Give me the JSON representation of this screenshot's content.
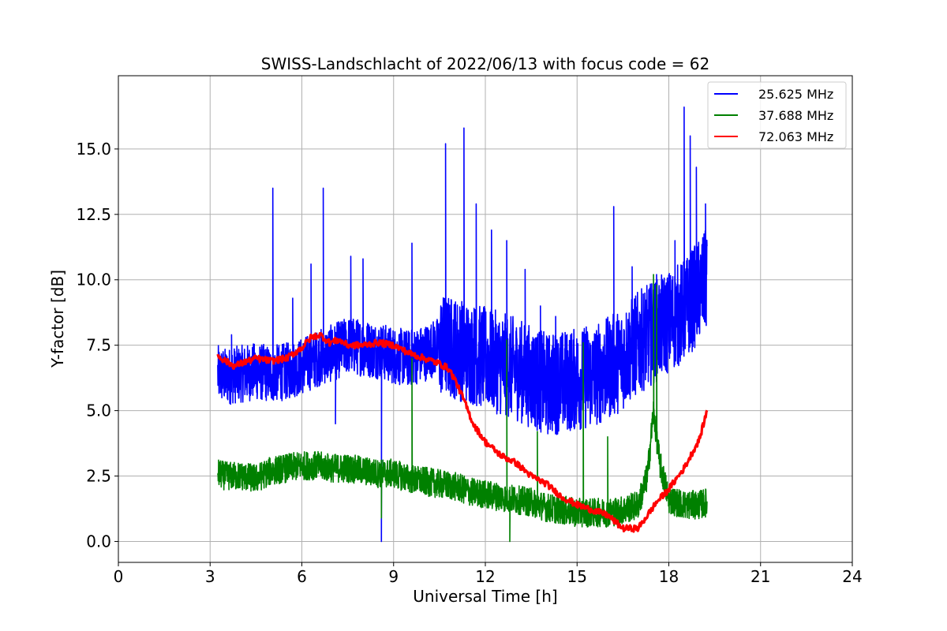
{
  "chart_data": {
    "type": "line",
    "title": "SWISS-Landschlacht of 2022/06/13 with focus code = 62",
    "xlabel": "Universal Time [h]",
    "ylabel": "Y-factor [dB]",
    "xlim": [
      0,
      24
    ],
    "ylim": [
      -0.8,
      17.8
    ],
    "xticks": [
      0,
      3,
      6,
      9,
      12,
      15,
      18,
      21,
      24
    ],
    "xtick_labels": [
      "0",
      "3",
      "6",
      "9",
      "12",
      "15",
      "18",
      "21",
      "24"
    ],
    "yticks": [
      0,
      2.5,
      5,
      7.5,
      10,
      12.5,
      15
    ],
    "ytick_labels": [
      "0.0",
      "2.5",
      "5.0",
      "7.5",
      "10.0",
      "12.5",
      "15.0"
    ],
    "grid": true,
    "legend_position": "top-right",
    "series": [
      {
        "name": "25.625 MHz",
        "color": "#0000ff",
        "x": [
          3.25,
          3.5,
          4.0,
          4.5,
          5.0,
          5.5,
          6.0,
          6.5,
          7.0,
          7.5,
          8.0,
          8.5,
          9.0,
          9.5,
          10.0,
          10.5,
          11.0,
          11.5,
          12.0,
          12.5,
          13.0,
          13.5,
          14.0,
          14.5,
          15.0,
          15.5,
          16.0,
          16.5,
          17.0,
          17.5,
          18.0,
          18.5,
          19.0,
          19.25
        ],
        "values": [
          6.4,
          6.3,
          6.4,
          6.5,
          6.4,
          6.5,
          6.7,
          7.0,
          7.2,
          7.5,
          7.4,
          7.3,
          7.1,
          7.0,
          7.2,
          7.5,
          7.4,
          7.2,
          7.0,
          6.8,
          6.6,
          6.3,
          6.0,
          6.1,
          6.2,
          6.3,
          6.6,
          7.0,
          7.6,
          8.0,
          8.4,
          8.8,
          9.6,
          10.0
        ],
        "spikes": [
          [
            3.7,
            7.9
          ],
          [
            5.05,
            13.5
          ],
          [
            5.7,
            9.3
          ],
          [
            6.3,
            10.6
          ],
          [
            6.7,
            13.5
          ],
          [
            7.1,
            4.5
          ],
          [
            7.6,
            10.9
          ],
          [
            8.0,
            10.8
          ],
          [
            8.6,
            0.0
          ],
          [
            9.6,
            11.4
          ],
          [
            10.7,
            15.2
          ],
          [
            11.3,
            15.8
          ],
          [
            11.7,
            12.9
          ],
          [
            12.2,
            11.9
          ],
          [
            12.7,
            11.5
          ],
          [
            13.3,
            10.4
          ],
          [
            13.8,
            9.0
          ],
          [
            14.3,
            8.6
          ],
          [
            15.3,
            8.2
          ],
          [
            16.2,
            12.8
          ],
          [
            16.8,
            10.5
          ],
          [
            17.6,
            10.2
          ],
          [
            18.2,
            11.5
          ],
          [
            18.5,
            16.6
          ],
          [
            18.7,
            15.5
          ],
          [
            18.9,
            14.3
          ],
          [
            19.2,
            12.9
          ]
        ]
      },
      {
        "name": "37.688 MHz",
        "color": "#008000",
        "x": [
          3.25,
          3.5,
          4.0,
          4.5,
          5.0,
          5.5,
          6.0,
          6.5,
          7.0,
          7.5,
          8.0,
          8.5,
          9.0,
          9.5,
          10.0,
          10.5,
          11.0,
          11.5,
          12.0,
          12.5,
          13.0,
          13.5,
          14.0,
          14.5,
          15.0,
          15.5,
          16.0,
          16.5,
          17.0,
          17.3,
          17.5,
          17.7,
          18.0,
          18.5,
          19.0,
          19.25
        ],
        "values": [
          2.6,
          2.5,
          2.5,
          2.4,
          2.7,
          2.8,
          2.9,
          2.9,
          2.8,
          2.8,
          2.7,
          2.6,
          2.6,
          2.4,
          2.3,
          2.2,
          2.1,
          1.9,
          1.8,
          1.7,
          1.6,
          1.5,
          1.3,
          1.2,
          1.1,
          1.1,
          1.1,
          1.2,
          1.4,
          2.5,
          5.0,
          3.0,
          1.6,
          1.4,
          1.4,
          1.5
        ],
        "spikes": [
          [
            8.6,
            0.9
          ],
          [
            9.6,
            7.0
          ],
          [
            12.7,
            7.7
          ],
          [
            12.8,
            0.0
          ],
          [
            13.7,
            4.2
          ],
          [
            15.2,
            7.6
          ],
          [
            16.0,
            4.0
          ],
          [
            17.5,
            10.2
          ],
          [
            17.6,
            9.8
          ]
        ]
      },
      {
        "name": "72.063 MHz",
        "color": "#ff0000",
        "x": [
          3.25,
          3.5,
          3.8,
          4.0,
          4.5,
          5.0,
          5.5,
          6.0,
          6.3,
          6.6,
          6.9,
          7.2,
          7.5,
          8.0,
          8.5,
          9.0,
          9.5,
          10.0,
          10.5,
          10.8,
          11.0,
          11.3,
          11.6,
          12.0,
          12.5,
          13.0,
          13.5,
          14.0,
          14.5,
          15.0,
          15.5,
          16.0,
          16.5,
          17.0,
          17.3,
          17.6,
          18.0,
          18.5,
          19.0,
          19.25
        ],
        "values": [
          7.1,
          6.9,
          6.7,
          6.8,
          7.0,
          6.9,
          7.0,
          7.4,
          7.8,
          7.9,
          7.6,
          7.7,
          7.5,
          7.5,
          7.6,
          7.5,
          7.2,
          7.0,
          6.8,
          6.6,
          6.2,
          5.4,
          4.5,
          3.8,
          3.3,
          3.0,
          2.5,
          2.2,
          1.7,
          1.4,
          1.2,
          1.0,
          0.5,
          0.5,
          1.0,
          1.5,
          2.0,
          2.8,
          3.9,
          5.0
        ]
      }
    ]
  }
}
